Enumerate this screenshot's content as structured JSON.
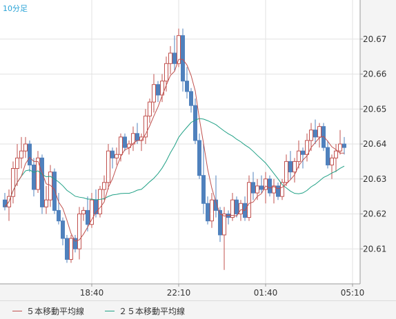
{
  "chart_data": {
    "type": "candlestick",
    "timeframe_label": "10分足",
    "ylim": [
      20.6,
      20.68
    ],
    "y_ticks": [
      "20.67",
      "20.66",
      "20.65",
      "20.64",
      "20.63",
      "20.62",
      "20.61"
    ],
    "x_ticks": [
      {
        "label": "18:40",
        "index": 21
      },
      {
        "label": "22:10",
        "index": 42
      },
      {
        "label": "01:40",
        "index": 63
      },
      {
        "label": "05:10",
        "index": 84
      }
    ],
    "candles": [
      [
        20.624,
        20.626,
        20.621,
        20.622
      ],
      [
        20.622,
        20.627,
        20.618,
        20.625
      ],
      [
        20.625,
        20.635,
        20.623,
        20.633
      ],
      [
        20.633,
        20.64,
        20.628,
        20.636
      ],
      [
        20.636,
        20.642,
        20.633,
        20.638
      ],
      [
        20.638,
        20.642,
        20.636,
        20.64
      ],
      [
        20.64,
        20.641,
        20.632,
        20.634
      ],
      [
        20.634,
        20.636,
        20.625,
        20.627
      ],
      [
        20.627,
        20.638,
        20.626,
        20.636
      ],
      [
        20.636,
        20.637,
        20.62,
        20.622
      ],
      [
        20.622,
        20.628,
        20.62,
        20.624
      ],
      [
        20.624,
        20.634,
        20.622,
        20.632
      ],
      [
        20.632,
        20.633,
        20.62,
        20.621
      ],
      [
        20.621,
        20.626,
        20.617,
        20.618
      ],
      [
        20.618,
        20.619,
        20.611,
        20.613
      ],
      [
        20.613,
        20.614,
        20.606,
        20.607
      ],
      [
        20.607,
        20.614,
        20.606,
        20.613
      ],
      [
        20.613,
        20.614,
        20.609,
        20.61
      ],
      [
        20.61,
        20.622,
        20.607,
        20.62
      ],
      [
        20.62,
        20.622,
        20.618,
        20.621
      ],
      [
        20.621,
        20.625,
        20.615,
        20.617
      ],
      [
        20.617,
        20.626,
        20.616,
        20.624
      ],
      [
        20.624,
        20.627,
        20.619,
        20.62
      ],
      [
        20.62,
        20.628,
        20.619,
        20.627
      ],
      [
        20.627,
        20.631,
        20.624,
        20.629
      ],
      [
        20.629,
        20.64,
        20.627,
        20.638
      ],
      [
        20.638,
        20.639,
        20.633,
        20.636
      ],
      [
        20.636,
        20.639,
        20.634,
        20.637
      ],
      [
        20.637,
        20.643,
        20.635,
        20.642
      ],
      [
        20.642,
        20.643,
        20.638,
        20.639
      ],
      [
        20.639,
        20.641,
        20.637,
        20.64
      ],
      [
        20.64,
        20.645,
        20.638,
        20.643
      ],
      [
        20.643,
        20.646,
        20.64,
        20.641
      ],
      [
        20.641,
        20.643,
        20.638,
        20.642
      ],
      [
        20.642,
        20.65,
        20.64,
        20.648
      ],
      [
        20.648,
        20.653,
        20.646,
        20.652
      ],
      [
        20.652,
        20.66,
        20.649,
        20.657
      ],
      [
        20.657,
        20.658,
        20.652,
        20.654
      ],
      [
        20.654,
        20.66,
        20.652,
        20.658
      ],
      [
        20.658,
        20.665,
        20.655,
        20.663
      ],
      [
        20.663,
        20.668,
        20.66,
        20.666
      ],
      [
        20.666,
        20.671,
        20.661,
        20.663
      ],
      [
        20.663,
        20.673,
        20.662,
        20.671
      ],
      [
        20.671,
        20.673,
        20.655,
        20.658
      ],
      [
        20.658,
        20.662,
        20.653,
        20.655
      ],
      [
        20.655,
        20.656,
        20.649,
        20.651
      ],
      [
        20.651,
        20.653,
        20.64,
        20.641
      ],
      [
        20.641,
        20.643,
        20.63,
        20.631
      ],
      [
        20.631,
        20.64,
        20.62,
        20.623
      ],
      [
        20.623,
        20.625,
        20.617,
        20.618
      ],
      [
        20.618,
        20.626,
        20.616,
        20.624
      ],
      [
        20.624,
        20.631,
        20.619,
        20.621
      ],
      [
        20.621,
        20.622,
        20.612,
        20.614
      ],
      [
        20.614,
        20.622,
        20.604,
        20.62
      ],
      [
        20.62,
        20.621,
        20.617,
        20.619
      ],
      [
        20.619,
        20.626,
        20.618,
        20.624
      ],
      [
        20.624,
        20.625,
        20.619,
        20.62
      ],
      [
        20.62,
        20.624,
        20.618,
        20.623
      ],
      [
        20.623,
        20.625,
        20.618,
        20.619
      ],
      [
        20.619,
        20.631,
        20.618,
        20.629
      ],
      [
        20.629,
        20.632,
        20.624,
        20.626
      ],
      [
        20.626,
        20.63,
        20.624,
        20.628
      ],
      [
        20.628,
        20.631,
        20.626,
        20.627
      ],
      [
        20.627,
        20.632,
        20.623,
        20.63
      ],
      [
        20.63,
        20.631,
        20.625,
        20.626
      ],
      [
        20.626,
        20.63,
        20.623,
        20.628
      ],
      [
        20.628,
        20.629,
        20.624,
        20.625
      ],
      [
        20.625,
        20.63,
        20.624,
        20.629
      ],
      [
        20.629,
        20.637,
        20.628,
        20.635
      ],
      [
        20.635,
        20.638,
        20.63,
        20.632
      ],
      [
        20.632,
        20.636,
        20.629,
        20.635
      ],
      [
        20.635,
        20.641,
        20.633,
        20.638
      ],
      [
        20.638,
        20.639,
        20.633,
        20.637
      ],
      [
        20.637,
        20.643,
        20.635,
        20.641
      ],
      [
        20.641,
        20.646,
        20.638,
        20.644
      ],
      [
        20.644,
        20.647,
        20.64,
        20.642
      ],
      [
        20.642,
        20.646,
        20.639,
        20.645
      ],
      [
        20.645,
        20.646,
        20.638,
        20.639
      ],
      [
        20.639,
        20.641,
        20.633,
        20.634
      ],
      [
        20.634,
        20.637,
        20.63,
        20.636
      ],
      [
        20.636,
        20.64,
        20.632,
        20.638
      ],
      [
        20.638,
        20.644,
        20.637,
        20.64
      ],
      [
        20.64,
        20.642,
        20.637,
        20.639
      ]
    ],
    "series": [
      {
        "name": "5本移動平均線",
        "color": "#c0504d"
      },
      {
        "name": "25本移動平均線",
        "color": "#1fa085"
      }
    ],
    "colors": {
      "up": "#c0504d",
      "down": "#4f81bd",
      "grid": "#e2e2e2",
      "frame": "#9a9a9a"
    }
  },
  "legend": {
    "ma5": "５本移動平均線",
    "ma25": "２５本移動平均線"
  }
}
